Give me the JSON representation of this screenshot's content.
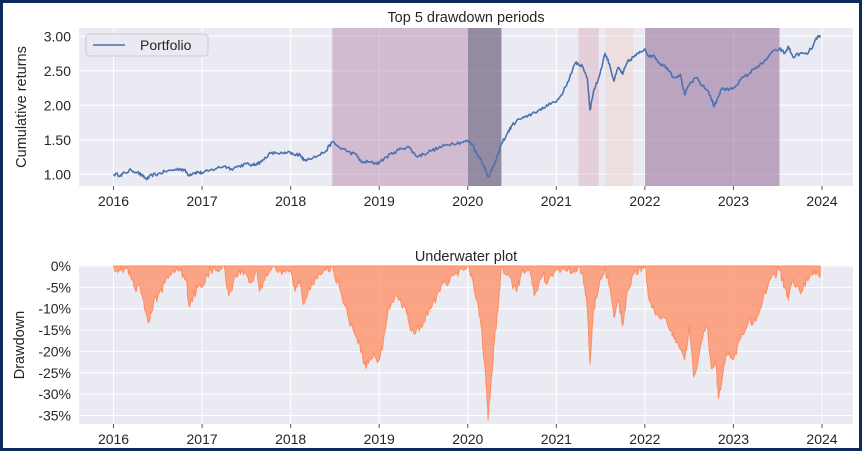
{
  "chart_data": [
    {
      "type": "line",
      "title": "Top 5 drawdown periods",
      "xlabel": "",
      "ylabel": "Cumulative returns",
      "xlim": [
        2015.61,
        2024.35
      ],
      "ylim": [
        0.83,
        3.12
      ],
      "grid": true,
      "legend": {
        "placement": "top-left",
        "entries": [
          "Portfolio"
        ]
      },
      "xticks": [
        2016,
        2017,
        2018,
        2019,
        2020,
        2021,
        2022,
        2023,
        2024
      ],
      "xtick_labels": [
        "2016",
        "2017",
        "2018",
        "2019",
        "2020",
        "2021",
        "2022",
        "2023",
        "2024"
      ],
      "yticks": [
        1.0,
        1.5,
        2.0,
        2.5,
        3.0
      ],
      "ytick_labels": [
        "1.00",
        "1.50",
        "2.00",
        "2.50",
        "3.00"
      ],
      "drawdown_periods": [
        {
          "start": 2018.47,
          "end": 2020.0,
          "color": "#b580a8",
          "opacity": 0.45
        },
        {
          "start": 2020.0,
          "end": 2020.38,
          "color": "#6f6280",
          "opacity": 0.7
        },
        {
          "start": 2021.25,
          "end": 2021.48,
          "color": "#d99aab",
          "opacity": 0.35
        },
        {
          "start": 2021.55,
          "end": 2021.87,
          "color": "#f1d2c9",
          "opacity": 0.45
        },
        {
          "start": 2022.0,
          "end": 2023.52,
          "color": "#8a5e8e",
          "opacity": 0.5
        }
      ],
      "series": [
        {
          "name": "Portfolio",
          "color": "#4c72b0",
          "x": [
            2016.0,
            2016.08,
            2016.13,
            2016.2,
            2016.27,
            2016.33,
            2016.38,
            2016.43,
            2016.5,
            2016.58,
            2016.67,
            2016.75,
            2016.8,
            2016.85,
            2016.9,
            2016.95,
            2017.0,
            2017.08,
            2017.17,
            2017.25,
            2017.33,
            2017.42,
            2017.5,
            2017.58,
            2017.62,
            2017.67,
            2017.75,
            2017.83,
            2017.92,
            2018.0,
            2018.05,
            2018.1,
            2018.15,
            2018.2,
            2018.3,
            2018.4,
            2018.47,
            2018.55,
            2018.65,
            2018.75,
            2018.8,
            2018.87,
            2018.95,
            2019.0,
            2019.08,
            2019.17,
            2019.25,
            2019.33,
            2019.42,
            2019.5,
            2019.58,
            2019.67,
            2019.75,
            2019.83,
            2019.92,
            2020.0,
            2020.05,
            2020.1,
            2020.15,
            2020.2,
            2020.23,
            2020.27,
            2020.32,
            2020.38,
            2020.45,
            2020.5,
            2020.58,
            2020.67,
            2020.75,
            2020.83,
            2020.92,
            2021.0,
            2021.08,
            2021.15,
            2021.22,
            2021.25,
            2021.3,
            2021.35,
            2021.38,
            2021.42,
            2021.48,
            2021.55,
            2021.6,
            2021.65,
            2021.7,
            2021.75,
            2021.8,
            2021.87,
            2021.93,
            2022.0,
            2022.05,
            2022.1,
            2022.17,
            2022.25,
            2022.33,
            2022.4,
            2022.45,
            2022.5,
            2022.58,
            2022.65,
            2022.72,
            2022.78,
            2022.82,
            2022.87,
            2022.92,
            2023.0,
            2023.08,
            2023.17,
            2023.25,
            2023.33,
            2023.42,
            2023.52,
            2023.58,
            2023.62,
            2023.67,
            2023.75,
            2023.83,
            2023.9,
            2023.95,
            2023.98
          ],
          "y": [
            1.0,
            0.99,
            1.02,
            1.06,
            1.03,
            0.97,
            0.93,
            0.99,
            1.0,
            1.04,
            1.06,
            1.08,
            1.06,
            0.99,
            1.02,
            1.03,
            1.02,
            1.05,
            1.09,
            1.12,
            1.08,
            1.12,
            1.15,
            1.13,
            1.16,
            1.18,
            1.29,
            1.31,
            1.3,
            1.31,
            1.27,
            1.3,
            1.2,
            1.23,
            1.26,
            1.34,
            1.47,
            1.39,
            1.33,
            1.27,
            1.17,
            1.18,
            1.16,
            1.17,
            1.25,
            1.32,
            1.37,
            1.4,
            1.26,
            1.29,
            1.34,
            1.38,
            1.42,
            1.45,
            1.46,
            1.48,
            1.44,
            1.3,
            1.22,
            1.06,
            0.96,
            1.06,
            1.2,
            1.44,
            1.6,
            1.71,
            1.8,
            1.83,
            1.9,
            1.93,
            2.03,
            2.05,
            2.2,
            2.4,
            2.62,
            2.6,
            2.55,
            2.4,
            1.93,
            2.2,
            2.4,
            2.75,
            2.6,
            2.35,
            2.55,
            2.45,
            2.62,
            2.7,
            2.75,
            2.82,
            2.7,
            2.73,
            2.6,
            2.55,
            2.4,
            2.45,
            2.15,
            2.3,
            2.4,
            2.28,
            2.2,
            1.98,
            2.1,
            2.25,
            2.22,
            2.25,
            2.37,
            2.45,
            2.55,
            2.6,
            2.75,
            2.82,
            2.75,
            2.85,
            2.7,
            2.75,
            2.74,
            2.86,
            3.0,
            2.98
          ]
        }
      ]
    },
    {
      "type": "area",
      "title": "Underwater plot",
      "xlabel": "",
      "ylabel": "Drawdown",
      "xlim": [
        2015.61,
        2024.35
      ],
      "ylim": [
        -37,
        0
      ],
      "grid": true,
      "xticks": [
        2016,
        2017,
        2018,
        2019,
        2020,
        2021,
        2022,
        2023,
        2024
      ],
      "xtick_labels": [
        "2016",
        "2017",
        "2018",
        "2019",
        "2020",
        "2021",
        "2022",
        "2023",
        "2024"
      ],
      "yticks": [
        0,
        -5,
        -10,
        -15,
        -20,
        -25,
        -30,
        -35
      ],
      "ytick_labels": [
        "0%",
        "-5%",
        "-10%",
        "-15%",
        "-20%",
        "-25%",
        "-30%",
        "-35%"
      ],
      "series": [
        {
          "name": "Drawdown",
          "color": "#ff8c60",
          "x": [
            2016.0,
            2016.08,
            2016.15,
            2016.2,
            2016.25,
            2016.3,
            2016.35,
            2016.4,
            2016.45,
            2016.5,
            2016.58,
            2016.67,
            2016.75,
            2016.82,
            2016.85,
            2016.9,
            2016.95,
            2017.0,
            2017.05,
            2017.1,
            2017.17,
            2017.25,
            2017.3,
            2017.35,
            2017.42,
            2017.5,
            2017.55,
            2017.62,
            2017.65,
            2017.72,
            2017.8,
            2017.9,
            2018.0,
            2018.05,
            2018.1,
            2018.15,
            2018.2,
            2018.3,
            2018.4,
            2018.47,
            2018.55,
            2018.65,
            2018.75,
            2018.8,
            2018.85,
            2018.9,
            2018.95,
            2019.0,
            2019.05,
            2019.1,
            2019.2,
            2019.3,
            2019.35,
            2019.42,
            2019.5,
            2019.58,
            2019.67,
            2019.75,
            2019.85,
            2019.95,
            2020.0,
            2020.05,
            2020.1,
            2020.15,
            2020.2,
            2020.23,
            2020.26,
            2020.3,
            2020.35,
            2020.38,
            2020.45,
            2020.55,
            2020.6,
            2020.7,
            2020.75,
            2020.85,
            2020.9,
            2021.0,
            2021.1,
            2021.2,
            2021.25,
            2021.3,
            2021.35,
            2021.38,
            2021.42,
            2021.48,
            2021.55,
            2021.6,
            2021.65,
            2021.7,
            2021.75,
            2021.8,
            2021.87,
            2021.93,
            2022.0,
            2022.05,
            2022.1,
            2022.2,
            2022.3,
            2022.35,
            2022.45,
            2022.5,
            2022.55,
            2022.65,
            2022.7,
            2022.75,
            2022.8,
            2022.83,
            2022.87,
            2022.92,
            2023.0,
            2023.08,
            2023.17,
            2023.25,
            2023.33,
            2023.42,
            2023.52,
            2023.58,
            2023.62,
            2023.67,
            2023.75,
            2023.8,
            2023.85,
            2023.9,
            2023.95,
            2023.98
          ],
          "y": [
            0,
            -1,
            -0.5,
            -3,
            -6,
            -5,
            -10,
            -13,
            -9,
            -7,
            -4,
            -1,
            -1,
            -3,
            -9,
            -7,
            -5,
            -5,
            -2,
            -1,
            -1,
            0,
            -7,
            -4,
            -1,
            -2,
            -4,
            -1,
            -6,
            -2,
            0,
            -2,
            -1,
            -6,
            -3,
            -9,
            -5,
            -3,
            -1,
            0,
            -5,
            -12,
            -17,
            -20,
            -24,
            -22,
            -21,
            -22,
            -17,
            -10,
            -7,
            -10,
            -15,
            -15,
            -13,
            -10,
            -6,
            -4,
            -2,
            -1,
            0,
            -3,
            -8,
            -14,
            -25,
            -36,
            -28,
            -18,
            -8,
            0,
            -2,
            -6,
            -2,
            -1,
            -7,
            -2,
            -4,
            -1,
            -1,
            -1,
            0,
            -2,
            -10,
            -23,
            -10,
            -5,
            0,
            -5,
            -12,
            -8,
            -14,
            -6,
            -2,
            -1,
            0,
            -8,
            -10,
            -12,
            -15,
            -18,
            -22,
            -14,
            -26,
            -17,
            -14,
            -24,
            -22,
            -31,
            -27,
            -20,
            -22,
            -17,
            -13,
            -13,
            -8,
            -3,
            -1,
            -5,
            -8,
            -3,
            -6,
            -4,
            -3,
            -1,
            -1,
            -2
          ]
        }
      ]
    }
  ]
}
